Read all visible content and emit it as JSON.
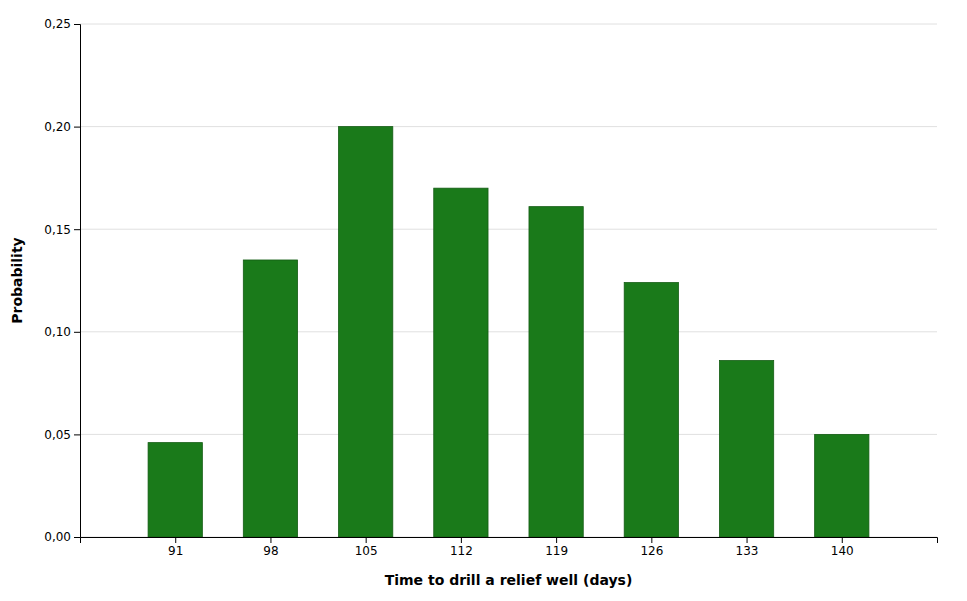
{
  "chart_data": {
    "type": "bar",
    "x": [
      91,
      98,
      105,
      112,
      119,
      126,
      133,
      140
    ],
    "values": [
      0.046,
      0.135,
      0.2,
      0.17,
      0.161,
      0.124,
      0.086,
      0.05
    ],
    "color": "#1a7a1a",
    "xlabel": "Time to drill a relief well (days)",
    "ylabel": "Probability",
    "xlim": [
      84,
      147
    ],
    "xticks": [
      91,
      98,
      105,
      112,
      119,
      126,
      133,
      140
    ],
    "ylim": [
      0.0,
      0.25
    ],
    "yticks": [
      {
        "value": 0.0,
        "label": "0,00"
      },
      {
        "value": 0.05,
        "label": "0,05"
      },
      {
        "value": 0.1,
        "label": "0,10"
      },
      {
        "value": 0.15,
        "label": "0,15"
      },
      {
        "value": 0.2,
        "label": "0,20"
      },
      {
        "value": 0.25,
        "label": "0,25"
      }
    ],
    "grid": true
  }
}
